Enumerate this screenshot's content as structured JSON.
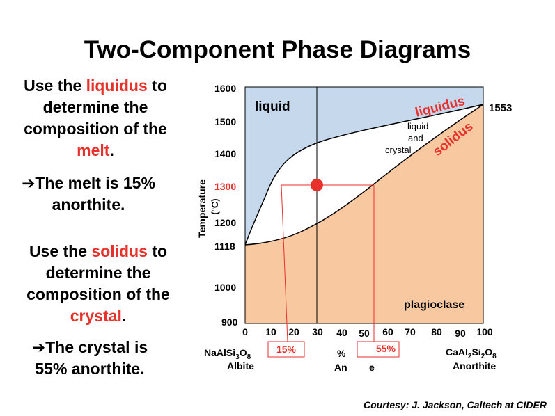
{
  "title": "Two-Component Phase Diagrams",
  "left_text": {
    "p1_a": "Use the ",
    "p1_b": "liquidus",
    "p1_c": " to",
    "p1_d": "determine the",
    "p1_e": "composition of the",
    "p1_f": "melt",
    "p1_g": ".",
    "p2_a": "➔The melt is 15%",
    "p2_b": "anorthite.",
    "p3_a": "Use the ",
    "p3_b": "solidus",
    "p3_c": " to",
    "p3_d": "determine the",
    "p3_e": "composition of the",
    "p3_f": "crystal",
    "p3_g": ".",
    "p4_a": "➔The crystal is",
    "p4_b": "55% anorthite."
  },
  "diagram": {
    "y_axis_label_1": "Temperature",
    "y_axis_label_2": "(°C)",
    "y_ticks": [
      "1600",
      "1500",
      "1400",
      "1300",
      "1200",
      "1118",
      "1000",
      "900"
    ],
    "x_ticks": [
      "0",
      "10",
      "20",
      "30",
      "40",
      "50",
      "60",
      "70",
      "80",
      "90",
      "100"
    ],
    "region_liquid": "liquid",
    "region_liquid_crystal_1": "liquid",
    "region_liquid_crystal_2": "and",
    "region_liquid_crystal_3": "crystal",
    "region_plagioclase": "plagioclase",
    "curve_liquidus": "liquidus",
    "curve_solidus": "solidus",
    "melt_point_end": "1553",
    "left_end_formula_1": "NaAlSi",
    "left_end_formula_2": "3",
    "left_end_formula_3": "O",
    "left_end_formula_4": "8",
    "left_end_name": "Albite",
    "right_end_formula_1": "CaAl",
    "right_end_formula_2": "2",
    "right_end_formula_3": "Si",
    "right_end_formula_4": "2",
    "right_end_formula_5": "O",
    "right_end_formula_6": "8",
    "right_end_name": "Anorthite",
    "x_label_1": "%",
    "x_label_2": "An",
    "x_label_3": "e",
    "melt_composition_box": "15%",
    "crystal_composition_box": "55%",
    "colors": {
      "liquid": "#c5d8ec",
      "plagioclase": "#f8c9a0",
      "accent_red": "#e8312b"
    }
  },
  "courtesy": "Courtesy: J. Jackson, Caltech at CIDER"
}
